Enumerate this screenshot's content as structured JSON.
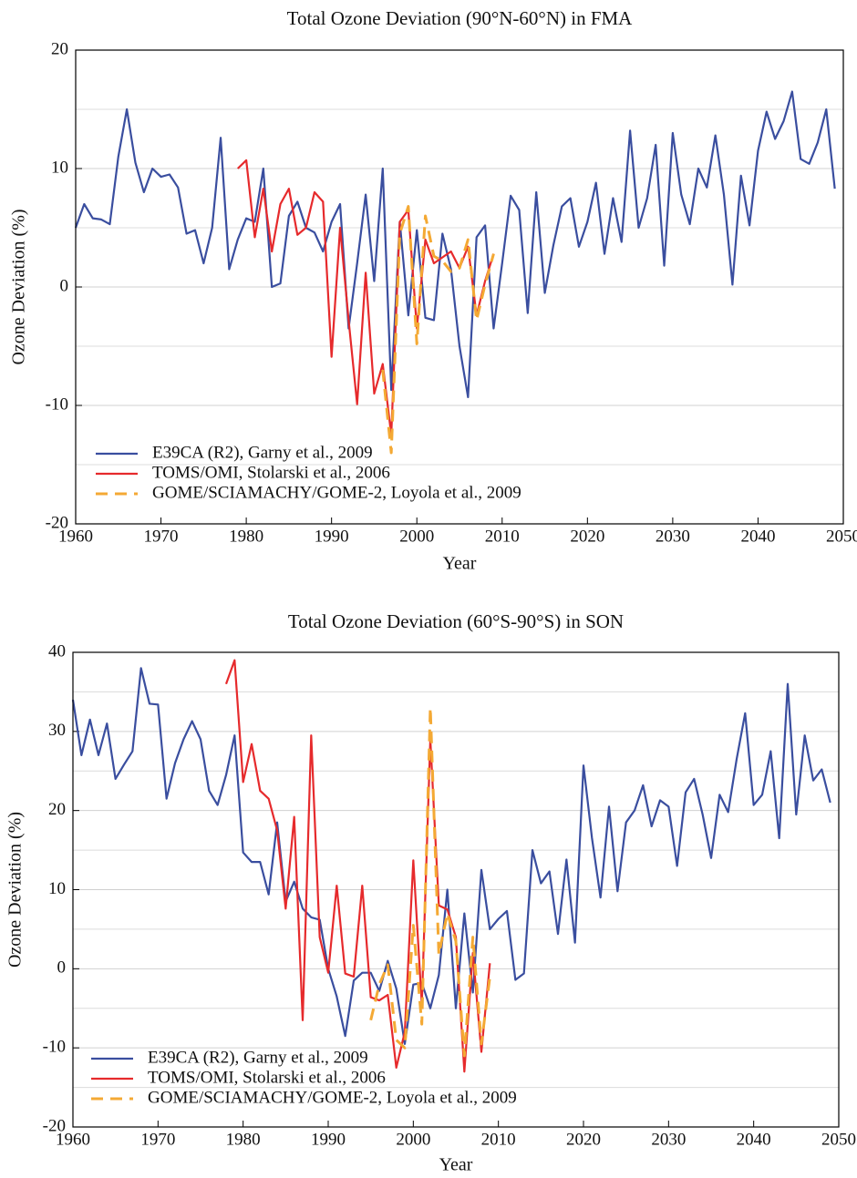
{
  "chart_data": [
    {
      "type": "line",
      "title": "Total Ozone Deviation (90°N-60°N) in FMA",
      "x_label": "Year",
      "y_label": "Ozone Deviation (%)",
      "xlim": [
        1960,
        2050
      ],
      "xticks": [
        1960,
        1970,
        1980,
        1990,
        2000,
        2010,
        2020,
        2030,
        2040,
        2050
      ],
      "ylim": [
        -20,
        20
      ],
      "yticks": [
        -20,
        -10,
        0,
        10,
        20
      ],
      "minor_yticks": [
        -15,
        -5,
        5,
        15
      ],
      "grid": true,
      "legend": "lower left",
      "x": [
        1960,
        1961,
        1962,
        1963,
        1964,
        1965,
        1966,
        1967,
        1968,
        1969,
        1970,
        1971,
        1972,
        1973,
        1974,
        1975,
        1976,
        1977,
        1978,
        1979,
        1980,
        1981,
        1982,
        1983,
        1984,
        1985,
        1986,
        1987,
        1988,
        1989,
        1990,
        1991,
        1992,
        1993,
        1994,
        1995,
        1996,
        1997,
        1998,
        1999,
        2000,
        2001,
        2002,
        2003,
        2004,
        2005,
        2006,
        2007,
        2008,
        2009,
        2010,
        2011,
        2012,
        2013,
        2014,
        2015,
        2016,
        2017,
        2018,
        2019,
        2020,
        2021,
        2022,
        2023,
        2024,
        2025,
        2026,
        2027,
        2028,
        2029,
        2030,
        2031,
        2032,
        2033,
        2034,
        2035,
        2036,
        2037,
        2038,
        2039,
        2040,
        2041,
        2042,
        2043,
        2044,
        2045,
        2046,
        2047,
        2048,
        2049
      ],
      "series": [
        {
          "name": "E39CA (R2), Garny et al., 2009",
          "color": "#3a4e9f",
          "dash": false,
          "values": [
            5,
            7,
            5.8,
            5.7,
            5.3,
            11,
            15,
            10.5,
            8,
            10,
            9.3,
            9.5,
            8.4,
            4.5,
            4.8,
            2,
            5,
            12.6,
            1.5,
            4,
            5.8,
            5.5,
            10,
            0,
            0.3,
            6,
            7.2,
            5,
            4.6,
            3,
            5.5,
            7,
            -3.5,
            2,
            7.8,
            0.5,
            10,
            -8.7,
            5.5,
            -2.4,
            4.8,
            -2.6,
            -2.8,
            4.5,
            1.5,
            -5,
            -9.3,
            4.2,
            5.2,
            -3.5,
            2,
            7.7,
            6.5,
            -2.2,
            8,
            -0.5,
            3.5,
            6.8,
            7.5,
            3.4,
            5.5,
            8.8,
            2.8,
            7.5,
            3.8,
            13.2,
            5,
            7.5,
            12,
            1.8,
            13,
            7.8,
            5.3,
            10,
            8.4,
            12.8,
            7.8,
            0.2,
            9.4,
            5.2,
            11.5,
            14.8,
            12.5,
            14,
            16.5,
            10.8,
            10.4,
            12.2,
            15,
            8.3
          ]
        },
        {
          "name": "TOMS/OMI, Stolarski et al., 2006",
          "color": "#e62a2c",
          "dash": false,
          "values": [
            null,
            null,
            null,
            null,
            null,
            null,
            null,
            null,
            null,
            null,
            null,
            null,
            null,
            null,
            null,
            null,
            null,
            null,
            null,
            10,
            10.7,
            4.2,
            8.3,
            3,
            7,
            8.3,
            4.4,
            5,
            8,
            7.2,
            -5.9,
            5,
            -2.8,
            -9.9,
            1.2,
            -9,
            -6.5,
            -12.5,
            5.5,
            6.5,
            -3.5,
            4,
            2,
            2.5,
            3,
            1.6,
            3.4,
            -2.4,
            0.5,
            2.8,
            null,
            null,
            null,
            null,
            null,
            null,
            null,
            null,
            null,
            null,
            null,
            null,
            null,
            null,
            null,
            null,
            null,
            null,
            null,
            null,
            null,
            null,
            null,
            null,
            null,
            null,
            null,
            null,
            null,
            null,
            null,
            null,
            null,
            null,
            null,
            null,
            null,
            null,
            null,
            null
          ]
        },
        {
          "name": "GOME/SCIAMACHY/GOME-2, Loyola et al., 2009",
          "color": "#f4a934",
          "dash": true,
          "values": [
            null,
            null,
            null,
            null,
            null,
            null,
            null,
            null,
            null,
            null,
            null,
            null,
            null,
            null,
            null,
            null,
            null,
            null,
            null,
            null,
            null,
            null,
            null,
            null,
            null,
            null,
            null,
            null,
            null,
            null,
            null,
            null,
            null,
            null,
            null,
            null,
            -7,
            -14,
            4.5,
            6.8,
            -4.8,
            6,
            2.6,
            2.2,
            1.3,
            1.6,
            4,
            -2.8,
            0.2,
            2.8,
            null,
            null,
            null,
            null,
            null,
            null,
            null,
            null,
            null,
            null,
            null,
            null,
            null,
            null,
            null,
            null,
            null,
            null,
            null,
            null,
            null,
            null,
            null,
            null,
            null,
            null,
            null,
            null,
            null,
            null,
            null,
            null,
            null,
            null,
            null,
            null,
            null,
            null,
            null,
            null
          ]
        }
      ]
    },
    {
      "type": "line",
      "title": "Total Ozone Deviation (60°S-90°S) in SON",
      "x_label": "Year",
      "y_label": "Ozone Deviation (%)",
      "xlim": [
        1960,
        2050
      ],
      "xticks": [
        1960,
        1970,
        1980,
        1990,
        2000,
        2010,
        2020,
        2030,
        2040,
        2050
      ],
      "ylim": [
        -20,
        40
      ],
      "yticks": [
        -20,
        -10,
        0,
        10,
        20,
        30,
        40
      ],
      "minor_yticks": [
        -15,
        -5,
        5,
        15,
        25,
        35
      ],
      "grid": true,
      "legend": "lower left",
      "x": [
        1960,
        1961,
        1962,
        1963,
        1964,
        1965,
        1966,
        1967,
        1968,
        1969,
        1970,
        1971,
        1972,
        1973,
        1974,
        1975,
        1976,
        1977,
        1978,
        1979,
        1980,
        1981,
        1982,
        1983,
        1984,
        1985,
        1986,
        1987,
        1988,
        1989,
        1990,
        1991,
        1992,
        1993,
        1994,
        1995,
        1996,
        1997,
        1998,
        1999,
        2000,
        2001,
        2002,
        2003,
        2004,
        2005,
        2006,
        2007,
        2008,
        2009,
        2010,
        2011,
        2012,
        2013,
        2014,
        2015,
        2016,
        2017,
        2018,
        2019,
        2020,
        2021,
        2022,
        2023,
        2024,
        2025,
        2026,
        2027,
        2028,
        2029,
        2030,
        2031,
        2032,
        2033,
        2034,
        2035,
        2036,
        2037,
        2038,
        2039,
        2040,
        2041,
        2042,
        2043,
        2044,
        2045,
        2046,
        2047,
        2048,
        2049
      ],
      "series": [
        {
          "name": "E39CA (R2), Garny et al., 2009",
          "color": "#3a4e9f",
          "dash": false,
          "values": [
            34,
            27,
            31.5,
            27,
            31,
            24,
            25.8,
            27.5,
            38,
            33.5,
            33.4,
            21.5,
            26,
            29,
            31.3,
            29,
            22.5,
            20.7,
            24.5,
            29.5,
            14.7,
            13.5,
            13.5,
            9.4,
            18.5,
            8.5,
            11,
            7.6,
            6.5,
            6.2,
            0,
            -3.5,
            -8.5,
            -1.5,
            -0.5,
            -0.5,
            -2.8,
            1,
            -2.5,
            -9.5,
            -2,
            -1.8,
            -5,
            -0.8,
            10,
            -5,
            7,
            -3,
            12.5,
            5,
            6.3,
            7.3,
            -1.4,
            -0.6,
            15,
            10.8,
            12.3,
            4.4,
            13.8,
            3.3,
            25.7,
            16.5,
            9,
            20.5,
            9.8,
            18.5,
            20,
            23.2,
            18,
            21.3,
            20.5,
            13,
            22.3,
            24,
            19.5,
            14,
            22,
            19.8,
            26.5,
            32.3,
            20.7,
            22,
            27.5,
            16.5,
            36,
            19.5,
            29.5,
            23.8,
            25.2,
            21
          ]
        },
        {
          "name": "TOMS/OMI, Stolarski et al., 2006",
          "color": "#e62a2c",
          "dash": false,
          "values": [
            null,
            null,
            null,
            null,
            null,
            null,
            null,
            null,
            null,
            null,
            null,
            null,
            null,
            null,
            null,
            null,
            null,
            null,
            36,
            39,
            23.6,
            28.4,
            22.5,
            21.5,
            17.5,
            7.6,
            19.2,
            -6.5,
            29.5,
            4,
            -0.5,
            10.5,
            -0.6,
            -1,
            10.5,
            -3.6,
            -4,
            -3.3,
            -12.5,
            -8,
            13.7,
            -4.5,
            29,
            8,
            7.5,
            4,
            -13,
            2,
            -10.5,
            0.7,
            null,
            null,
            null,
            null,
            null,
            null,
            null,
            null,
            null,
            null,
            null,
            null,
            null,
            null,
            null,
            null,
            null,
            null,
            null,
            null,
            null,
            null,
            null,
            null,
            null,
            null,
            null,
            null,
            null,
            null,
            null,
            null,
            null,
            null,
            null,
            null,
            null,
            null,
            null,
            null
          ]
        },
        {
          "name": "GOME/SCIAMACHY/GOME-2, Loyola et al., 2009",
          "color": "#f4a934",
          "dash": true,
          "values": [
            null,
            null,
            null,
            null,
            null,
            null,
            null,
            null,
            null,
            null,
            null,
            null,
            null,
            null,
            null,
            null,
            null,
            null,
            null,
            null,
            null,
            null,
            null,
            null,
            null,
            null,
            null,
            null,
            null,
            null,
            null,
            null,
            null,
            null,
            null,
            -6.5,
            -2,
            0.5,
            -9,
            -10,
            5.5,
            -7,
            33,
            1.8,
            7,
            3.5,
            -11,
            4,
            -9.5,
            -1,
            null,
            null,
            null,
            null,
            null,
            null,
            null,
            null,
            null,
            null,
            null,
            null,
            null,
            null,
            null,
            null,
            null,
            null,
            null,
            null,
            null,
            null,
            null,
            null,
            null,
            null,
            null,
            null,
            null,
            null,
            null,
            null,
            null,
            null,
            null,
            null,
            null,
            null,
            null,
            null
          ]
        }
      ]
    }
  ]
}
